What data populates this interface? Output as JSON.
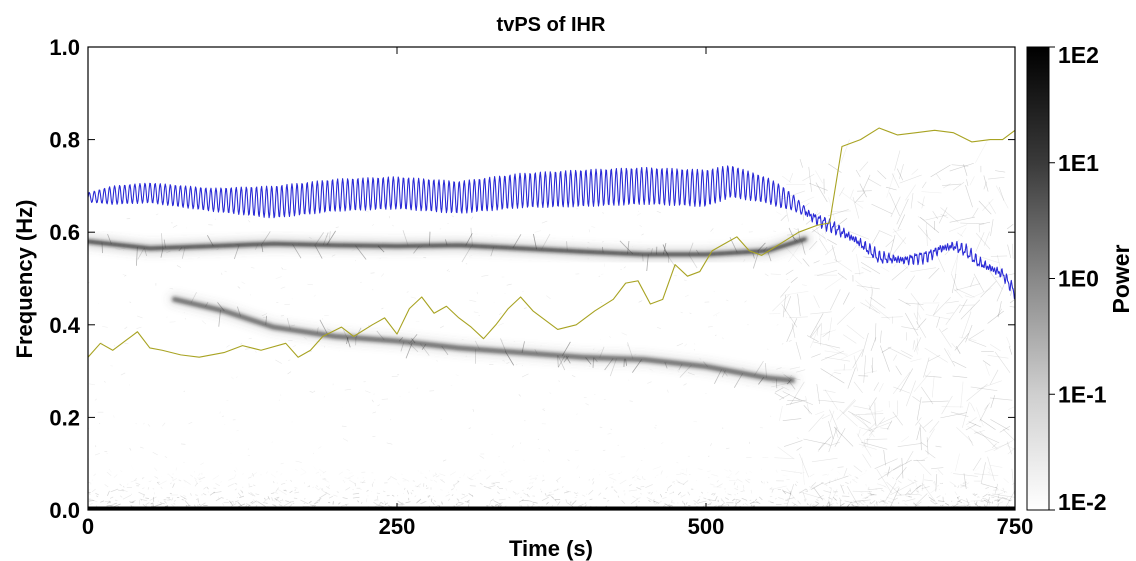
{
  "chart_data": {
    "type": "line",
    "title": "tvPS of IHR",
    "xlabel": "Time (s)",
    "ylabel": "Frequency (Hz)",
    "xlim": [
      0,
      750
    ],
    "ylim": [
      0,
      1.0
    ],
    "x_ticks": [
      0,
      250,
      500,
      750
    ],
    "x_tick_labels": [
      "0",
      "250",
      "500",
      "750"
    ],
    "y_ticks": [
      0,
      0.2,
      0.4,
      0.6,
      0.8,
      1.0
    ],
    "y_tick_labels": [
      "0.0",
      "0.2",
      "0.4",
      "0.6",
      "0.8",
      "1.0"
    ],
    "background": "grayscale time-frequency power spectrogram (tvPS)",
    "spectral_ridges": [
      {
        "points": [
          [
            0,
            0.58
          ],
          [
            50,
            0.565
          ],
          [
            100,
            0.57
          ],
          [
            150,
            0.575
          ],
          [
            200,
            0.572
          ],
          [
            250,
            0.57
          ],
          [
            300,
            0.572
          ],
          [
            350,
            0.565
          ],
          [
            400,
            0.558
          ],
          [
            450,
            0.552
          ],
          [
            500,
            0.552
          ],
          [
            550,
            0.56
          ],
          [
            580,
            0.585
          ]
        ],
        "strength": 0.9
      },
      {
        "points": [
          [
            70,
            0.455
          ],
          [
            110,
            0.43
          ],
          [
            150,
            0.395
          ],
          [
            200,
            0.375
          ],
          [
            250,
            0.365
          ],
          [
            300,
            0.35
          ],
          [
            350,
            0.34
          ],
          [
            400,
            0.33
          ],
          [
            450,
            0.325
          ],
          [
            500,
            0.31
          ],
          [
            550,
            0.285
          ],
          [
            570,
            0.28
          ]
        ],
        "strength": 0.7
      }
    ],
    "series": [
      {
        "color": "#2b2bd6",
        "points": [
          [
            0,
            0.675
          ],
          [
            20,
            0.68
          ],
          [
            50,
            0.685
          ],
          [
            100,
            0.67
          ],
          [
            150,
            0.665
          ],
          [
            200,
            0.68
          ],
          [
            250,
            0.685
          ],
          [
            300,
            0.675
          ],
          [
            350,
            0.69
          ],
          [
            400,
            0.695
          ],
          [
            450,
            0.7
          ],
          [
            500,
            0.695
          ],
          [
            520,
            0.71
          ],
          [
            550,
            0.69
          ],
          [
            570,
            0.665
          ],
          [
            585,
            0.635
          ],
          [
            600,
            0.615
          ],
          [
            620,
            0.585
          ],
          [
            640,
            0.545
          ],
          [
            660,
            0.54
          ],
          [
            680,
            0.55
          ],
          [
            690,
            0.565
          ],
          [
            700,
            0.57
          ],
          [
            710,
            0.56
          ],
          [
            720,
            0.535
          ],
          [
            740,
            0.51
          ],
          [
            750,
            0.47
          ]
        ],
        "oscillation_amplitude": [
          [
            0,
            0.01
          ],
          [
            20,
            0.02
          ],
          [
            100,
            0.025
          ],
          [
            150,
            0.035
          ],
          [
            300,
            0.035
          ],
          [
            400,
            0.04
          ],
          [
            500,
            0.04
          ],
          [
            520,
            0.035
          ],
          [
            560,
            0.025
          ],
          [
            580,
            0.01
          ],
          [
            600,
            0.005
          ],
          [
            750,
            0.005
          ]
        ]
      },
      {
        "color": "#a8a322",
        "points": [
          [
            0,
            0.33
          ],
          [
            10,
            0.36
          ],
          [
            20,
            0.345
          ],
          [
            35,
            0.375
          ],
          [
            40,
            0.385
          ],
          [
            50,
            0.35
          ],
          [
            60,
            0.345
          ],
          [
            75,
            0.335
          ],
          [
            90,
            0.33
          ],
          [
            110,
            0.34
          ],
          [
            125,
            0.355
          ],
          [
            140,
            0.345
          ],
          [
            160,
            0.36
          ],
          [
            170,
            0.33
          ],
          [
            180,
            0.345
          ],
          [
            190,
            0.375
          ],
          [
            205,
            0.395
          ],
          [
            215,
            0.375
          ],
          [
            230,
            0.4
          ],
          [
            240,
            0.415
          ],
          [
            250,
            0.38
          ],
          [
            260,
            0.435
          ],
          [
            270,
            0.46
          ],
          [
            280,
            0.425
          ],
          [
            290,
            0.44
          ],
          [
            300,
            0.415
          ],
          [
            310,
            0.395
          ],
          [
            320,
            0.37
          ],
          [
            330,
            0.4
          ],
          [
            340,
            0.435
          ],
          [
            350,
            0.46
          ],
          [
            360,
            0.43
          ],
          [
            370,
            0.41
          ],
          [
            380,
            0.39
          ],
          [
            395,
            0.4
          ],
          [
            410,
            0.43
          ],
          [
            425,
            0.455
          ],
          [
            435,
            0.49
          ],
          [
            445,
            0.495
          ],
          [
            455,
            0.445
          ],
          [
            465,
            0.455
          ],
          [
            475,
            0.53
          ],
          [
            485,
            0.505
          ],
          [
            495,
            0.515
          ],
          [
            505,
            0.56
          ],
          [
            515,
            0.575
          ],
          [
            525,
            0.59
          ],
          [
            535,
            0.56
          ],
          [
            545,
            0.55
          ],
          [
            560,
            0.575
          ],
          [
            575,
            0.6
          ],
          [
            590,
            0.615
          ],
          [
            600,
            0.62
          ],
          [
            610,
            0.785
          ],
          [
            625,
            0.8
          ],
          [
            640,
            0.825
          ],
          [
            655,
            0.81
          ],
          [
            670,
            0.815
          ],
          [
            685,
            0.82
          ],
          [
            700,
            0.815
          ],
          [
            715,
            0.795
          ],
          [
            730,
            0.8
          ],
          [
            740,
            0.8
          ],
          [
            750,
            0.82
          ]
        ]
      }
    ],
    "colorbar": {
      "label": "Power",
      "scale": "log",
      "range": [
        0.01,
        100
      ],
      "ticks": [
        100,
        10,
        1,
        0.1,
        0.01
      ],
      "tick_labels": [
        "1E2",
        "1E1",
        "1E0",
        "1E-1",
        "1E-2"
      ],
      "colors": [
        "#000000",
        "#ffffff"
      ]
    },
    "grid": false,
    "legend": "none"
  }
}
